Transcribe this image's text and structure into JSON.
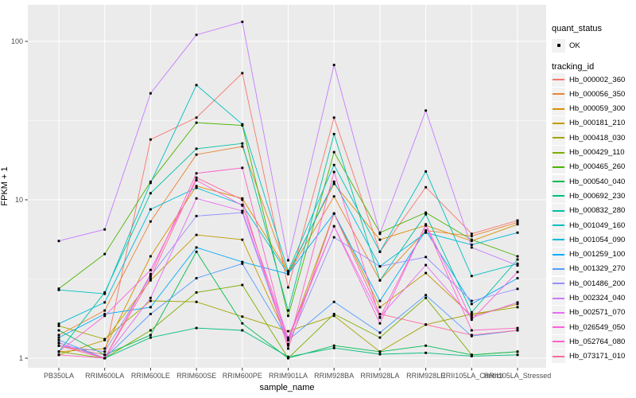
{
  "chart": {
    "panel_bg": "#EBEBEB",
    "grid_color": "#FFFFFF",
    "tick_label_color": "#4D4D4D",
    "tick_mark_color": "#333333",
    "point_color": "#000000"
  },
  "legend": {
    "quant_status": {
      "title": "quant_status",
      "items": [
        {
          "label": "OK",
          "marker": "point",
          "color": "#000000"
        }
      ]
    },
    "tracking_id": {
      "title": "tracking_id"
    }
  },
  "chart_data": {
    "type": "line",
    "title": "",
    "xlabel": "sample_name",
    "ylabel": "FPKM + 1",
    "yscale": "log10",
    "yticks": [
      1,
      10,
      100
    ],
    "ylim": [
      0.87,
      170
    ],
    "grid": true,
    "legend_position": "right",
    "x": [
      "PB350LA",
      "RRIM600LA",
      "RRIM600LE",
      "RRIM600SE",
      "RRIM600PE",
      "RRIM901LA",
      "RRIM928BA",
      "RRIM928LA",
      "RRIM928LE",
      "RRII105LA_Control",
      "RRII105LA_Stressed"
    ],
    "series": [
      {
        "name": "Hb_000002_360",
        "color": "#F8766D",
        "values": [
          1.2,
          1.05,
          24,
          33,
          63,
          2.8,
          33,
          4.7,
          12,
          6.1,
          7.4
        ]
      },
      {
        "name": "Hb_000056_350",
        "color": "#EA8331",
        "values": [
          1.4,
          2.0,
          7.3,
          19.3,
          21.7,
          3.4,
          10.5,
          3.1,
          6.4,
          5.9,
          7.2
        ]
      },
      {
        "name": "Hb_000059_300",
        "color": "#D89000",
        "values": [
          1.1,
          1.15,
          4.4,
          12.2,
          10.2,
          3.5,
          12.6,
          5.6,
          6.9,
          5.5,
          7.0
        ]
      },
      {
        "name": "Hb_000181_210",
        "color": "#C09B00",
        "values": [
          1.05,
          1.3,
          3.1,
          6.0,
          5.6,
          1.3,
          8.2,
          2.1,
          3.45,
          1.85,
          2.2
        ]
      },
      {
        "name": "Hb_000418_030",
        "color": "#A3A500",
        "values": [
          1.6,
          1.32,
          2.3,
          2.27,
          1.83,
          1.48,
          1.85,
          1.1,
          1.63,
          1.9,
          2.1
        ]
      },
      {
        "name": "Hb_000429_110",
        "color": "#7CAE00",
        "values": [
          1.1,
          1.0,
          1.5,
          2.6,
          2.9,
          1.0,
          1.9,
          1.35,
          2.4,
          1.05,
          1.1
        ]
      },
      {
        "name": "Hb_000465_260",
        "color": "#49B500",
        "values": [
          2.75,
          4.55,
          13,
          30.7,
          29.5,
          1.85,
          20,
          6.2,
          8.3,
          5.6,
          4.4
        ]
      },
      {
        "name": "Hb_000540_040",
        "color": "#00BB4E",
        "values": [
          1.5,
          1.05,
          1.4,
          4.7,
          1.66,
          1.0,
          1.2,
          1.1,
          1.2,
          1.05,
          1.1
        ]
      },
      {
        "name": "Hb_000692_230",
        "color": "#00BF7D",
        "values": [
          1.25,
          1.0,
          1.35,
          1.55,
          1.5,
          1.02,
          1.16,
          1.06,
          1.08,
          1.03,
          1.05
        ]
      },
      {
        "name": "Hb_000832_280",
        "color": "#00C1A2",
        "values": [
          1.1,
          2.6,
          11,
          21,
          22.7,
          2.0,
          26,
          3.1,
          8.1,
          1.95,
          4.2
        ]
      },
      {
        "name": "Hb_001049_160",
        "color": "#00C0C1",
        "values": [
          2.7,
          2.55,
          12.8,
          53,
          30,
          3.55,
          16.6,
          4.7,
          15.1,
          3.3,
          3.95
        ]
      },
      {
        "name": "Hb_001054_090",
        "color": "#00BBDA",
        "values": [
          1.65,
          2.25,
          8.7,
          11.9,
          9.3,
          3.4,
          13,
          3.8,
          6.2,
          5.2,
          6.2
        ]
      },
      {
        "name": "Hb_001259_100",
        "color": "#00ACFC",
        "values": [
          1.35,
          1.9,
          2.1,
          5.0,
          4.05,
          3.4,
          8.2,
          2.3,
          6.4,
          2.2,
          3.2
        ]
      },
      {
        "name": "Hb_001329_270",
        "color": "#529EFF",
        "values": [
          1.3,
          1.0,
          1.9,
          3.2,
          3.95,
          1.3,
          2.27,
          1.45,
          2.5,
          1.38,
          1.5
        ]
      },
      {
        "name": "Hb_001486_200",
        "color": "#9590FF",
        "values": [
          1.2,
          1.1,
          3.3,
          7.9,
          8.3,
          1.23,
          5.8,
          3.8,
          4.35,
          2.3,
          2.74
        ]
      },
      {
        "name": "Hb_002324_040",
        "color": "#C77CFF",
        "values": [
          5.5,
          6.5,
          47,
          110,
          133,
          4.15,
          71,
          6.1,
          36.6,
          5.0,
          3.85
        ]
      },
      {
        "name": "Hb_002571_070",
        "color": "#E76BF3",
        "values": [
          1.25,
          1.0,
          2.4,
          10.2,
          8.5,
          1.3,
          6.8,
          1.82,
          3.87,
          1.8,
          2.25
        ]
      },
      {
        "name": "Hb_026549_050",
        "color": "#FA62DB",
        "values": [
          1.1,
          1.85,
          3.6,
          13.3,
          9.2,
          1.35,
          6.8,
          1.66,
          7.0,
          1.75,
          3.5
        ]
      },
      {
        "name": "Hb_052764_080",
        "color": "#FF61C7",
        "values": [
          1.05,
          1.0,
          3.4,
          14.7,
          15.9,
          1.2,
          15.0,
          1.8,
          6.9,
          1.5,
          1.55
        ]
      },
      {
        "name": "Hb_073171_010",
        "color": "#FF689E",
        "values": [
          1.2,
          1.0,
          3.2,
          13.8,
          10.0,
          1.15,
          8.2,
          1.9,
          1.63,
          1.4,
          1.5
        ]
      }
    ]
  }
}
